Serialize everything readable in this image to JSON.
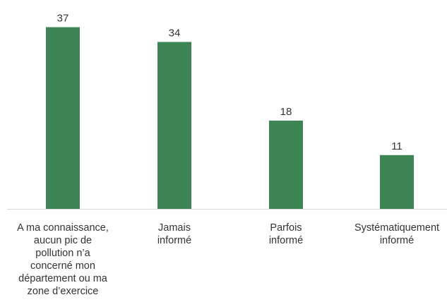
{
  "chart_data": {
    "type": "bar",
    "title": "",
    "xlabel": "",
    "ylabel": "",
    "categories": [
      "A ma connaissance,\naucun pic de\npollution n’a\nconcerné mon\ndépartement ou ma\nzone d’exercice",
      "Jamais\ninformé",
      "Parfois\ninformé",
      "Systématiquement\ninformé"
    ],
    "values": [
      37,
      34,
      18,
      11
    ],
    "ylim": [
      0,
      40
    ],
    "grid": false,
    "legend": "none",
    "bar_color": "#3d8555",
    "axis_color": "#d9d9d9",
    "label_color": "#333333"
  }
}
